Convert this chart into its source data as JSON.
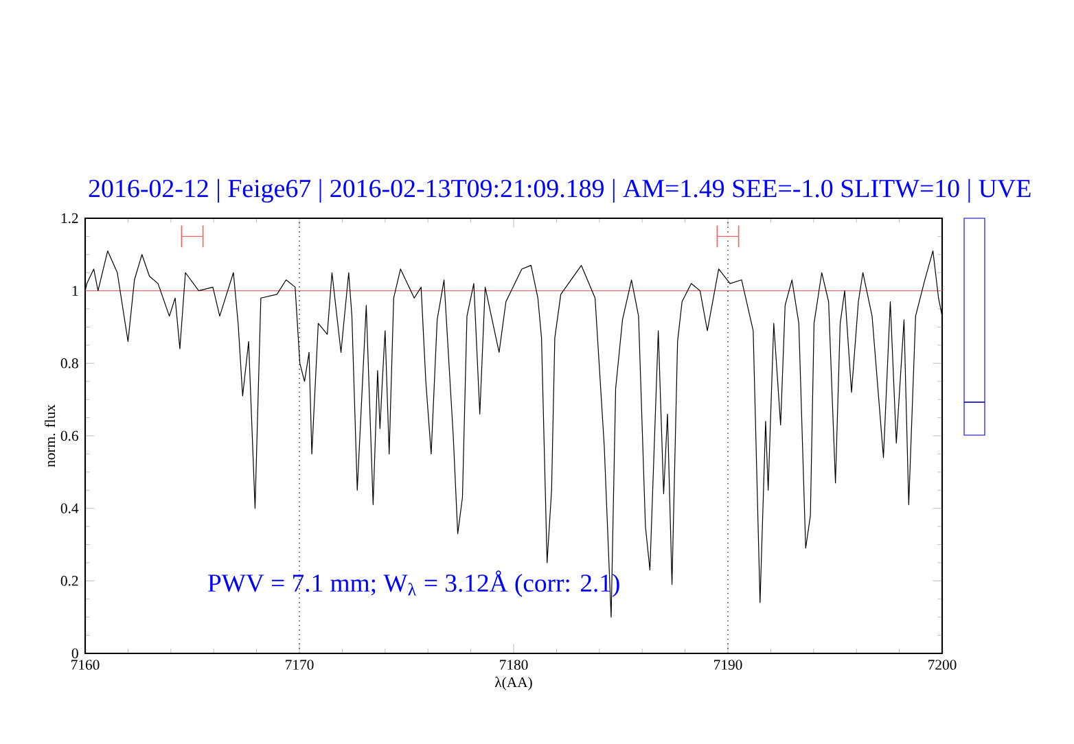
{
  "chart_data": {
    "type": "line",
    "title": "2016-02-12 | Feige67 | 2016-02-13T09:21:09.189 | AM=1.49  SEE=-1.0  SLITW=10 | UVE",
    "xlabel": "λ(AA)",
    "ylabel": "norm. flux",
    "annotations": [
      "PWV = 7.1 mm; W$_{λ}$ = 3.12Å (corr: 2.1)"
    ],
    "xlim": [
      7160,
      7200
    ],
    "xticks": [
      7160,
      7170,
      7180,
      7190,
      7200
    ],
    "ylim": [
      0,
      1.2
    ],
    "yticks": [
      0,
      0.2,
      0.4,
      0.6,
      0.8,
      1,
      1.2
    ],
    "grid": false,
    "ref_lines": [
      {
        "axis": "y",
        "value": 1,
        "color": "#e07070",
        "line_style": "solid"
      },
      {
        "axis": "x",
        "value": 7170,
        "color": "#000000",
        "line_style": "dotted"
      },
      {
        "axis": "x",
        "value": 7190,
        "color": "#000000",
        "line_style": "dotted"
      }
    ],
    "series": [
      {
        "color": "#000000",
        "x": [
          7160.0,
          7160.08,
          7160.4,
          7160.6,
          7161.05,
          7161.5,
          7162.0,
          7162.3,
          7162.65,
          7163.0,
          7163.4,
          7163.93,
          7164.2,
          7164.42,
          7164.68,
          7165.3,
          7165.96,
          7166.28,
          7166.6,
          7166.92,
          7167.14,
          7167.35,
          7167.63,
          7167.93,
          7168.2,
          7168.95,
          7169.38,
          7169.8,
          7170.02,
          7170.24,
          7170.45,
          7170.58,
          7170.88,
          7171.3,
          7171.52,
          7171.94,
          7172.3,
          7172.45,
          7172.7,
          7173.12,
          7173.44,
          7173.65,
          7173.76,
          7173.87,
          7174.0,
          7174.19,
          7174.4,
          7174.72,
          7175.36,
          7175.68,
          7175.9,
          7176.15,
          7176.43,
          7176.75,
          7177.18,
          7177.39,
          7177.61,
          7177.82,
          7178.14,
          7178.42,
          7178.67,
          7179.32,
          7179.64,
          7180.38,
          7180.81,
          7181.13,
          7181.3,
          7181.56,
          7181.77,
          7181.92,
          7182.2,
          7183.16,
          7183.8,
          7184.23,
          7184.55,
          7184.76,
          7185.08,
          7185.5,
          7185.83,
          7186.15,
          7186.36,
          7186.75,
          7187.0,
          7187.18,
          7187.39,
          7187.65,
          7187.86,
          7188.29,
          7188.7,
          7189.04,
          7189.57,
          7190.1,
          7190.64,
          7191.18,
          7191.5,
          7191.76,
          7191.88,
          7192.14,
          7192.46,
          7192.67,
          7192.99,
          7193.31,
          7193.63,
          7193.85,
          7194.02,
          7194.38,
          7194.7,
          7195.02,
          7195.24,
          7195.45,
          7195.77,
          7196.09,
          7196.3,
          7196.73,
          7197.26,
          7197.58,
          7197.86,
          7198.22,
          7198.44,
          7198.76,
          7199.19,
          7199.57,
          7199.83,
          7200.0
        ],
        "values": [
          1.0,
          1.02,
          1.06,
          1.0,
          1.11,
          1.05,
          0.86,
          1.03,
          1.1,
          1.04,
          1.02,
          0.93,
          0.98,
          0.84,
          1.05,
          1.0,
          1.01,
          0.93,
          0.99,
          1.05,
          0.91,
          0.71,
          0.86,
          0.4,
          0.98,
          0.99,
          1.03,
          1.01,
          0.8,
          0.75,
          0.83,
          0.55,
          0.91,
          0.88,
          1.05,
          0.83,
          1.05,
          0.93,
          0.45,
          0.96,
          0.41,
          0.78,
          0.62,
          0.75,
          0.89,
          0.55,
          0.98,
          1.06,
          0.98,
          1.01,
          0.75,
          0.55,
          0.92,
          1.03,
          0.6,
          0.33,
          0.43,
          0.93,
          1.02,
          0.66,
          1.01,
          0.83,
          0.97,
          1.06,
          1.07,
          0.98,
          0.87,
          0.25,
          0.45,
          0.87,
          0.99,
          1.07,
          0.98,
          0.57,
          0.1,
          0.73,
          0.92,
          1.03,
          0.93,
          0.35,
          0.23,
          0.89,
          0.44,
          0.66,
          0.19,
          0.86,
          0.97,
          1.02,
          1.0,
          0.89,
          1.06,
          1.02,
          1.03,
          0.89,
          0.14,
          0.64,
          0.45,
          0.91,
          0.63,
          0.96,
          1.03,
          0.91,
          0.29,
          0.38,
          0.91,
          1.05,
          0.97,
          0.47,
          0.91,
          1.0,
          0.72,
          0.97,
          1.05,
          0.93,
          0.54,
          0.97,
          0.58,
          0.92,
          0.41,
          0.93,
          1.03,
          1.11,
          0.98,
          0.93
        ]
      },
      {
        "color": "#f06060",
        "x": [
          7164.5,
          7165.5
        ],
        "values": [
          1.15,
          1.15
        ],
        "errors": [
          0.03,
          0.03
        ]
      },
      {
        "color": "#f06060",
        "x": [
          7189.5,
          7190.5
        ],
        "values": [
          1.15,
          1.15
        ],
        "errors": [
          0.03,
          0.03
        ]
      }
    ]
  }
}
